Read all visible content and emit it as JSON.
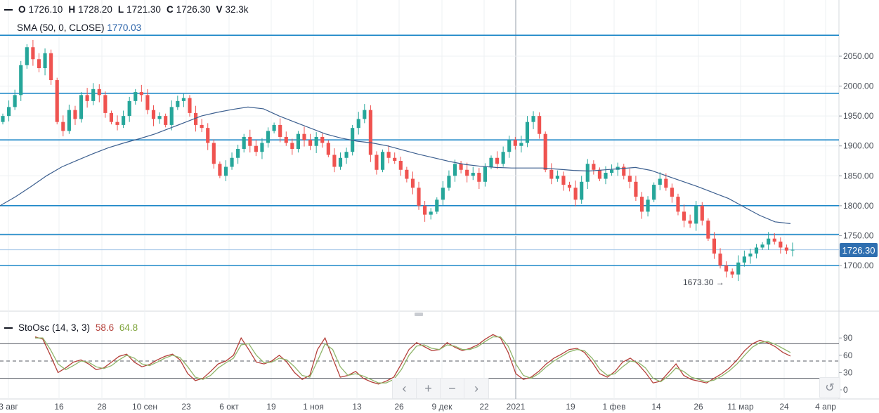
{
  "ohlc_header": {
    "o_label": "O",
    "o_value": "1726.10",
    "h_label": "H",
    "h_value": "1728.20",
    "l_label": "L",
    "l_value": "1721.30",
    "c_label": "C",
    "c_value": "1726.30",
    "v_label": "V",
    "v_value": "32.3k"
  },
  "sma_header": {
    "label": "SMA (50, 0, CLOSE)",
    "value": "1770.03"
  },
  "stoch_header": {
    "label": "StoOsc (14, 3, 3)",
    "k_value": "58.6",
    "d_value": "64.8"
  },
  "last_price_tag": "1726.30",
  "low_annotation": "1673.30 →",
  "colors": {
    "up": "#26a69a",
    "down": "#ef5350",
    "sma": "#3c5f8f",
    "hline": "#1e88c8",
    "stoch_k": "#b4403a",
    "stoch_d": "#8fb56a",
    "price_tag": "#2f6fb0"
  },
  "controls": {
    "prev": "‹",
    "zoom_in": "+",
    "zoom_out": "−",
    "next": "›",
    "reset": "↺"
  },
  "chart_data": [
    {
      "type": "candlestick",
      "title": "",
      "x_ticks": [
        "3 авг",
        "16",
        "28",
        "10 сен",
        "23",
        "6 окт",
        "19",
        "1 ноя",
        "13",
        "26",
        "9 дек",
        "22",
        "2021",
        "19",
        "1 фев",
        "14",
        "26",
        "11 мар",
        "24",
        "4 апр"
      ],
      "y_ticks": [
        "2050.00",
        "2000.00",
        "1950.00",
        "1900.00",
        "1850.00",
        "1800.00",
        "1750.00",
        "1700.00"
      ],
      "ylim": [
        1620,
        2085
      ],
      "horizontal_levels": [
        2085,
        1988,
        1910,
        1800,
        1752,
        1700
      ],
      "last_close": 1726.3,
      "sma_label": "SMA (50, 0, CLOSE)",
      "closes": [
        1950,
        1965,
        1985,
        2035,
        2065,
        2045,
        2030,
        2055,
        2010,
        1940,
        1925,
        1960,
        1945,
        1985,
        1975,
        1995,
        1985,
        1955,
        1940,
        1935,
        1950,
        1975,
        1990,
        1985,
        1960,
        1945,
        1950,
        1935,
        1965,
        1975,
        1980,
        1955,
        1935,
        1930,
        1905,
        1870,
        1850,
        1865,
        1880,
        1895,
        1915,
        1900,
        1890,
        1905,
        1925,
        1935,
        1915,
        1905,
        1895,
        1920,
        1910,
        1900,
        1915,
        1905,
        1885,
        1865,
        1880,
        1890,
        1930,
        1945,
        1960,
        1885,
        1860,
        1890,
        1880,
        1875,
        1860,
        1845,
        1830,
        1800,
        1785,
        1790,
        1810,
        1830,
        1850,
        1870,
        1860,
        1850,
        1855,
        1840,
        1865,
        1880,
        1870,
        1890,
        1910,
        1900,
        1905,
        1940,
        1950,
        1920,
        1860,
        1845,
        1850,
        1835,
        1830,
        1810,
        1840,
        1870,
        1860,
        1845,
        1855,
        1860,
        1865,
        1850,
        1840,
        1815,
        1790,
        1810,
        1835,
        1845,
        1830,
        1815,
        1790,
        1775,
        1770,
        1800,
        1775,
        1745,
        1720,
        1700,
        1690,
        1685,
        1705,
        1715,
        1720,
        1730,
        1735,
        1745,
        1740,
        1730,
        1725,
        1726.3
      ],
      "sma": [
        1800,
        1815,
        1832,
        1850,
        1865,
        1876,
        1887,
        1897,
        1905,
        1912,
        1920,
        1930,
        1940,
        1950,
        1956,
        1961,
        1965,
        1962,
        1950,
        1940,
        1930,
        1920,
        1913,
        1908,
        1905,
        1900,
        1893,
        1886,
        1880,
        1874,
        1869,
        1866,
        1864,
        1863,
        1863,
        1863,
        1861,
        1859,
        1858,
        1860,
        1862,
        1864,
        1859,
        1850,
        1841,
        1832,
        1822,
        1812,
        1798,
        1784,
        1773,
        1770
      ]
    },
    {
      "type": "line",
      "title": "",
      "y_ticks": [
        "90",
        "60",
        "30",
        "0"
      ],
      "ylim": [
        -10,
        100
      ],
      "levels": [
        80,
        50,
        20
      ],
      "series": [
        {
          "name": "K",
          "values": [
            92,
            88,
            60,
            30,
            38,
            48,
            52,
            45,
            35,
            38,
            48,
            58,
            62,
            48,
            40,
            44,
            52,
            58,
            62,
            52,
            28,
            16,
            20,
            32,
            45,
            50,
            60,
            90,
            70,
            48,
            45,
            50,
            60,
            48,
            30,
            18,
            25,
            70,
            90,
            55,
            22,
            25,
            32,
            20,
            14,
            10,
            15,
            22,
            45,
            70,
            82,
            75,
            68,
            70,
            82,
            74,
            68,
            72,
            78,
            88,
            96,
            90,
            65,
            28,
            18,
            22,
            32,
            45,
            55,
            62,
            70,
            72,
            65,
            48,
            28,
            22,
            32,
            48,
            55,
            45,
            30,
            12,
            15,
            30,
            45,
            25,
            18,
            15,
            12,
            20,
            28,
            38,
            52,
            68,
            80,
            86,
            82,
            75,
            65,
            58.6
          ]
        },
        {
          "name": "D",
          "values": [
            90,
            90,
            70,
            45,
            35,
            42,
            50,
            48,
            40,
            37,
            42,
            52,
            60,
            55,
            45,
            42,
            48,
            55,
            60,
            56,
            40,
            22,
            18,
            25,
            38,
            47,
            55,
            78,
            80,
            60,
            47,
            48,
            55,
            52,
            40,
            25,
            22,
            50,
            80,
            70,
            40,
            25,
            28,
            24,
            18,
            12,
            12,
            18,
            35,
            60,
            76,
            78,
            72,
            70,
            78,
            76,
            70,
            70,
            75,
            84,
            92,
            92,
            76,
            45,
            25,
            20,
            28,
            40,
            50,
            58,
            66,
            70,
            68,
            55,
            36,
            25,
            28,
            40,
            50,
            48,
            38,
            20,
            14,
            24,
            38,
            32,
            22,
            18,
            14,
            17,
            24,
            33,
            45,
            60,
            74,
            82,
            84,
            79,
            72,
            64.8
          ]
        }
      ]
    }
  ]
}
